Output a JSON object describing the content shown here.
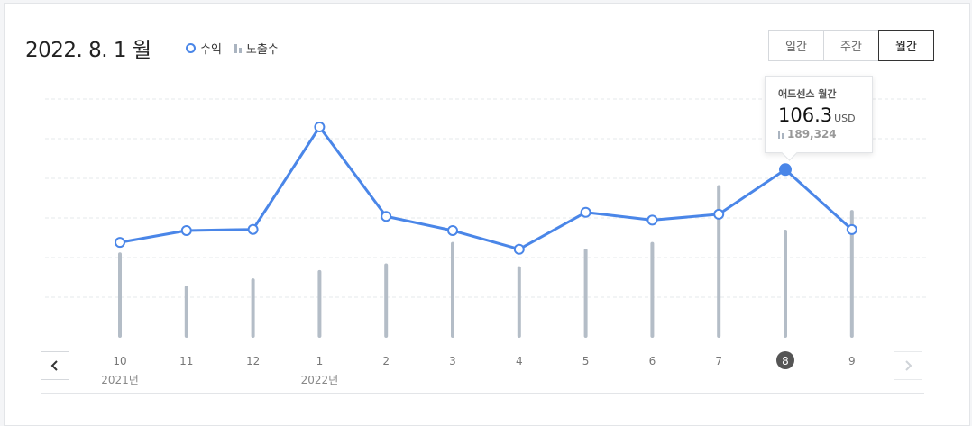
{
  "header": {
    "title": "2022. 8. 1 월",
    "legend": {
      "revenue": "수익",
      "impressions": "노출수"
    },
    "periods": [
      "일간",
      "주간",
      "월간"
    ],
    "active_period": "월간"
  },
  "tooltip": {
    "label": "애드센스 월간",
    "value": "106.3",
    "unit": "USD",
    "impressions": "189,324"
  },
  "colors": {
    "line": "#4a86e8",
    "bar": "#b4bdc7",
    "selected": "#555555"
  },
  "chart_data": {
    "type": "line",
    "categories": [
      "10",
      "11",
      "12",
      "1",
      "2",
      "3",
      "4",
      "5",
      "6",
      "7",
      "8",
      "9"
    ],
    "year_labels": [
      {
        "at": "10",
        "text": "2021년"
      },
      {
        "at": "1",
        "text": "2022년"
      }
    ],
    "selected": "8",
    "series": [
      {
        "name": "수익",
        "type": "line",
        "values": [
          61.5,
          68.8,
          69.5,
          132.5,
          77.5,
          68.8,
          57.3,
          80.0,
          75.2,
          78.8,
          106.3,
          69.4
        ]
      },
      {
        "name": "노출수",
        "type": "bar",
        "values": [
          148000,
          88000,
          101000,
          116000,
          128000,
          167000,
          123000,
          155000,
          167000,
          270000,
          189324,
          225000
        ]
      }
    ],
    "grid": true
  }
}
